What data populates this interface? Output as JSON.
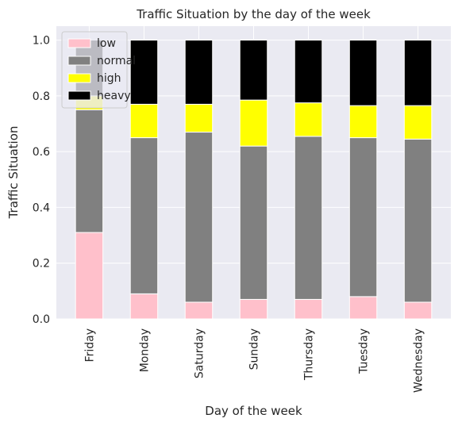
{
  "chart_data": {
    "type": "bar",
    "stacked": true,
    "title": "Traffic Situation by the day of the week",
    "xlabel": "Day of the week",
    "ylabel": "Traffic Situation",
    "ylim": [
      0,
      1.05
    ],
    "yticks": [
      "0.0",
      "0.2",
      "0.4",
      "0.6",
      "0.8",
      "1.0"
    ],
    "grid": true,
    "legend_position": "top-left",
    "categories": [
      "Friday",
      "Monday",
      "Saturday",
      "Sunday",
      "Thursday",
      "Tuesday",
      "Wednesday"
    ],
    "series": [
      {
        "name": "low",
        "color": "#ffc0cb",
        "values": [
          0.31,
          0.09,
          0.06,
          0.07,
          0.07,
          0.08,
          0.06
        ]
      },
      {
        "name": "normal",
        "color": "#808080",
        "values": [
          0.44,
          0.56,
          0.61,
          0.55,
          0.585,
          0.57,
          0.585
        ]
      },
      {
        "name": "high",
        "color": "#ffff00",
        "values": [
          0.05,
          0.12,
          0.1,
          0.165,
          0.12,
          0.115,
          0.12
        ]
      },
      {
        "name": "heavy",
        "color": "#000000",
        "values": [
          0.2,
          0.23,
          0.23,
          0.215,
          0.225,
          0.235,
          0.235
        ]
      }
    ]
  }
}
